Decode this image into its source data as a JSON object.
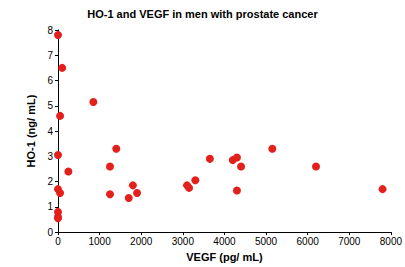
{
  "chart_data": {
    "type": "scatter",
    "title": "HO-1 and VEGF in men with prostate cancer",
    "x_label": "VEGF (pg/ mL)",
    "y_label": "HO-1 (ng/ mL)",
    "x": [
      0,
      100,
      50,
      850,
      0,
      250,
      0,
      50,
      0,
      0,
      0,
      1250,
      1250,
      1400,
      1700,
      1800,
      1900,
      3100,
      3150,
      3300,
      3650,
      4200,
      4300,
      4400,
      4300,
      5150,
      6200,
      7800
    ],
    "values": [
      7.8,
      6.5,
      4.6,
      5.15,
      3.05,
      2.4,
      1.7,
      1.55,
      0.8,
      0.6,
      0.55,
      2.6,
      1.5,
      3.3,
      1.35,
      1.85,
      1.55,
      1.85,
      1.75,
      2.05,
      2.9,
      2.85,
      2.95,
      2.6,
      1.65,
      3.3,
      2.6,
      1.7
    ],
    "color": "#e3201b",
    "marker": "circle",
    "xlim": [
      0,
      8000
    ],
    "xticks": [
      0,
      1000,
      2000,
      3000,
      4000,
      5000,
      6000,
      7000,
      8000
    ],
    "ylim": [
      0,
      8
    ],
    "yticks": [
      0,
      1,
      2,
      3,
      4,
      5,
      6,
      7,
      8
    ],
    "grid": false
  }
}
